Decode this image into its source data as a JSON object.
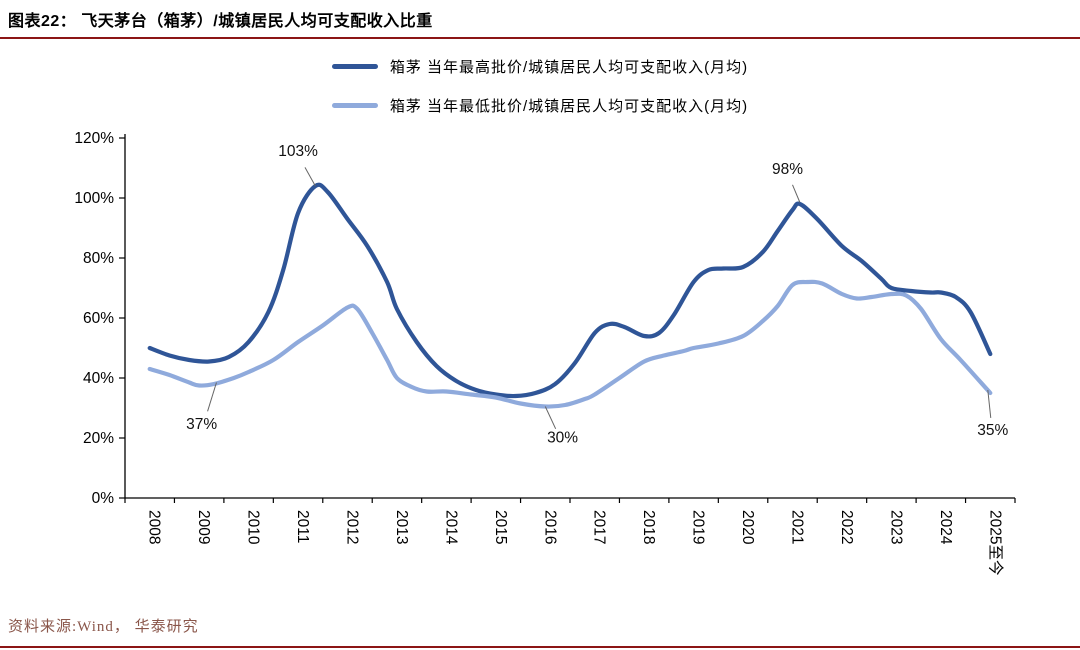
{
  "figure": {
    "title": "图表22：  飞天茅台（箱茅）/城镇居民人均可支配收入比重",
    "source": "资料来源:Wind， 华泰研究",
    "accent_color": "#8C1515"
  },
  "chart_data": {
    "type": "line",
    "title": "飞天茅台（箱茅）/城镇居民人均可支配收入比重",
    "legend_position": "top",
    "grid": false,
    "ylim": [
      0,
      120
    ],
    "y_ticks": [
      "0%",
      "20%",
      "40%",
      "60%",
      "80%",
      "100%",
      "120%"
    ],
    "x_categories": [
      "2008",
      "2009",
      "2010",
      "2011",
      "2012",
      "2013",
      "2014",
      "2015",
      "2016",
      "2017",
      "2018",
      "2019",
      "2020",
      "2021",
      "2022",
      "2023",
      "2024",
      "2025至今"
    ],
    "series": [
      {
        "name": "箱茅 当年最高批价/城镇居民人均可支配收入(月均)",
        "color": "#2F5597",
        "points": [
          [
            2008,
            50
          ],
          [
            2008.4,
            47.5
          ],
          [
            2008.8,
            46
          ],
          [
            2009.2,
            45.5
          ],
          [
            2009.6,
            47
          ],
          [
            2010,
            52
          ],
          [
            2010.4,
            62
          ],
          [
            2010.7,
            76
          ],
          [
            2011,
            95
          ],
          [
            2011.35,
            104
          ],
          [
            2011.6,
            102
          ],
          [
            2012,
            93
          ],
          [
            2012.4,
            84
          ],
          [
            2012.8,
            72
          ],
          [
            2013,
            63
          ],
          [
            2013.4,
            52
          ],
          [
            2013.8,
            44
          ],
          [
            2014.2,
            39
          ],
          [
            2014.6,
            36
          ],
          [
            2015,
            34.5
          ],
          [
            2015.4,
            34
          ],
          [
            2015.8,
            35
          ],
          [
            2016.2,
            38
          ],
          [
            2016.6,
            45
          ],
          [
            2017,
            55
          ],
          [
            2017.3,
            58
          ],
          [
            2017.6,
            57
          ],
          [
            2018,
            54
          ],
          [
            2018.3,
            55
          ],
          [
            2018.6,
            61
          ],
          [
            2019,
            72
          ],
          [
            2019.3,
            76
          ],
          [
            2019.6,
            76.5
          ],
          [
            2020,
            77
          ],
          [
            2020.4,
            82
          ],
          [
            2020.7,
            89
          ],
          [
            2021,
            96
          ],
          [
            2021.15,
            98
          ],
          [
            2021.5,
            93
          ],
          [
            2022,
            84
          ],
          [
            2022.4,
            79
          ],
          [
            2022.8,
            73
          ],
          [
            2023,
            70
          ],
          [
            2023.4,
            69
          ],
          [
            2023.8,
            68.5
          ],
          [
            2024,
            68.5
          ],
          [
            2024.3,
            67
          ],
          [
            2024.6,
            62
          ],
          [
            2025,
            48
          ]
        ]
      },
      {
        "name": "箱茅 当年最低批价/城镇居民人均可支配收入(月均)",
        "color": "#8FAADC",
        "points": [
          [
            2008,
            43
          ],
          [
            2008.4,
            41
          ],
          [
            2008.8,
            38.5
          ],
          [
            2009,
            37.5
          ],
          [
            2009.3,
            38
          ],
          [
            2009.7,
            40
          ],
          [
            2010,
            42
          ],
          [
            2010.5,
            46
          ],
          [
            2011,
            52
          ],
          [
            2011.5,
            57.5
          ],
          [
            2012,
            63.5
          ],
          [
            2012.2,
            63
          ],
          [
            2012.5,
            55
          ],
          [
            2012.8,
            46
          ],
          [
            2013,
            40
          ],
          [
            2013.3,
            37
          ],
          [
            2013.6,
            35.5
          ],
          [
            2014,
            35.5
          ],
          [
            2014.5,
            34.5
          ],
          [
            2015,
            33.5
          ],
          [
            2015.5,
            31.5
          ],
          [
            2016,
            30.5
          ],
          [
            2016.4,
            31
          ],
          [
            2016.8,
            33
          ],
          [
            2017,
            34.5
          ],
          [
            2017.5,
            40
          ],
          [
            2018,
            45.5
          ],
          [
            2018.4,
            47.5
          ],
          [
            2018.8,
            49
          ],
          [
            2019,
            50
          ],
          [
            2019.5,
            51.5
          ],
          [
            2020,
            54
          ],
          [
            2020.4,
            59
          ],
          [
            2020.7,
            64
          ],
          [
            2021,
            71
          ],
          [
            2021.3,
            72
          ],
          [
            2021.6,
            71.5
          ],
          [
            2022,
            68
          ],
          [
            2022.3,
            66.5
          ],
          [
            2022.6,
            67
          ],
          [
            2023,
            68
          ],
          [
            2023.3,
            67.5
          ],
          [
            2023.6,
            63
          ],
          [
            2024,
            53
          ],
          [
            2024.4,
            46
          ],
          [
            2025,
            35
          ]
        ]
      }
    ],
    "annotations": [
      {
        "text": "103%",
        "anchor": [
          2011.35,
          104
        ],
        "label": [
          2011.0,
          114
        ]
      },
      {
        "text": "98%",
        "anchor": [
          2021.15,
          98.5
        ],
        "label": [
          2020.9,
          108
        ]
      },
      {
        "text": "37%",
        "anchor": [
          2009.35,
          38.5
        ],
        "label": [
          2009.05,
          23
        ]
      },
      {
        "text": "30%",
        "anchor": [
          2016.0,
          30.5
        ],
        "label": [
          2016.35,
          18.5
        ]
      },
      {
        "text": "35%",
        "anchor": [
          2024.95,
          36
        ],
        "label": [
          2025.05,
          21
        ]
      }
    ]
  }
}
